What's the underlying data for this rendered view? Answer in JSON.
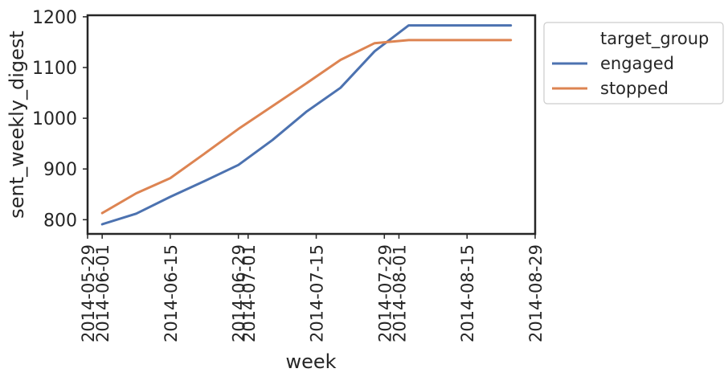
{
  "chart_data": {
    "type": "line",
    "xlabel": "week",
    "ylabel": "sent_weekly_digest",
    "x_ticks": [
      "2014-05-29",
      "2014-06-01",
      "2014-06-15",
      "2014-06-29",
      "2014-07-01",
      "2014-07-15",
      "2014-07-29",
      "2014-08-01",
      "2014-08-15",
      "2014-08-29"
    ],
    "xlim": [
      "2014-05-29",
      "2014-08-29"
    ],
    "y_ticks": [
      800,
      900,
      1000,
      1100,
      1200
    ],
    "ylim": [
      772,
      1203
    ],
    "grid": false,
    "legend": {
      "title": "target_group",
      "placement": "outside top-right"
    },
    "x": [
      "2014-06-01",
      "2014-06-08",
      "2014-06-15",
      "2014-06-22",
      "2014-06-29",
      "2014-07-06",
      "2014-07-13",
      "2014-07-20",
      "2014-07-27",
      "2014-08-03",
      "2014-08-10",
      "2014-08-17",
      "2014-08-24"
    ],
    "series": [
      {
        "name": "engaged",
        "color": "#4c72b0",
        "values": [
          791,
          812,
          845,
          876,
          908,
          957,
          1013,
          1060,
          1132,
          1183,
          1183,
          1183,
          1183
        ]
      },
      {
        "name": "stopped",
        "color": "#dd8452",
        "values": [
          813,
          852,
          882,
          930,
          979,
          1024,
          1069,
          1115,
          1148,
          1154,
          1154,
          1154,
          1154
        ]
      }
    ]
  }
}
